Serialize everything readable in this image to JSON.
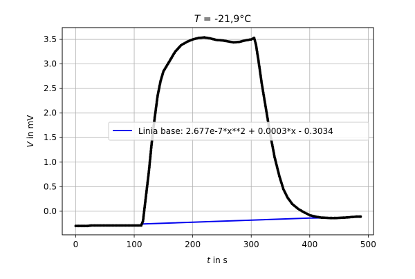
{
  "chart_data": {
    "type": "scatter",
    "title_var": "T",
    "title_rest": " = -21,9°C",
    "xlabel_var": "t",
    "xlabel_rest": " in s",
    "ylabel_var": "V",
    "ylabel_rest": " in mV",
    "xlim": [
      -23,
      509
    ],
    "ylim": [
      -0.48,
      3.74
    ],
    "xticks": [
      0,
      100,
      200,
      300,
      400,
      500
    ],
    "xtick_labels": [
      "0",
      "100",
      "200",
      "300",
      "400",
      "500"
    ],
    "yticks": [
      0.0,
      0.5,
      1.0,
      1.5,
      2.0,
      2.5,
      3.0,
      3.5
    ],
    "ytick_labels": [
      "0.0",
      "0.5",
      "1.0",
      "1.5",
      "2.0",
      "2.5",
      "3.0",
      "3.5"
    ],
    "grid": true,
    "legend_position": "center-right",
    "series": [
      {
        "kind": "points",
        "color": "#000000",
        "points": [
          [
            0,
            -0.3
          ],
          [
            20,
            -0.3
          ],
          [
            27,
            -0.29
          ],
          [
            50,
            -0.29
          ],
          [
            80,
            -0.29
          ],
          [
            100,
            -0.29
          ],
          [
            112,
            -0.29
          ],
          [
            115,
            -0.2
          ],
          [
            120,
            0.3
          ],
          [
            125,
            0.8
          ],
          [
            130,
            1.4
          ],
          [
            135,
            1.9
          ],
          [
            140,
            2.35
          ],
          [
            145,
            2.65
          ],
          [
            150,
            2.85
          ],
          [
            160,
            3.05
          ],
          [
            170,
            3.25
          ],
          [
            180,
            3.38
          ],
          [
            190,
            3.45
          ],
          [
            200,
            3.5
          ],
          [
            210,
            3.53
          ],
          [
            220,
            3.54
          ],
          [
            230,
            3.52
          ],
          [
            240,
            3.49
          ],
          [
            250,
            3.48
          ],
          [
            260,
            3.46
          ],
          [
            270,
            3.44
          ],
          [
            280,
            3.45
          ],
          [
            290,
            3.48
          ],
          [
            300,
            3.5
          ],
          [
            305,
            3.53
          ],
          [
            308,
            3.4
          ],
          [
            312,
            3.1
          ],
          [
            318,
            2.6
          ],
          [
            325,
            2.1
          ],
          [
            332,
            1.6
          ],
          [
            340,
            1.1
          ],
          [
            348,
            0.72
          ],
          [
            355,
            0.45
          ],
          [
            362,
            0.28
          ],
          [
            370,
            0.15
          ],
          [
            380,
            0.05
          ],
          [
            390,
            -0.02
          ],
          [
            400,
            -0.08
          ],
          [
            410,
            -0.11
          ],
          [
            420,
            -0.13
          ],
          [
            440,
            -0.14
          ],
          [
            460,
            -0.13
          ],
          [
            470,
            -0.12
          ],
          [
            480,
            -0.11
          ],
          [
            487,
            -0.11
          ]
        ]
      },
      {
        "kind": "line",
        "name": "Linia base: 2.677e-7*x**2 + 0.0003*x - 0.3034",
        "color": "#0000ee",
        "points": [
          [
            112,
            -0.26
          ],
          [
            400,
            -0.14
          ],
          [
            462,
            -0.13
          ]
        ]
      }
    ]
  }
}
